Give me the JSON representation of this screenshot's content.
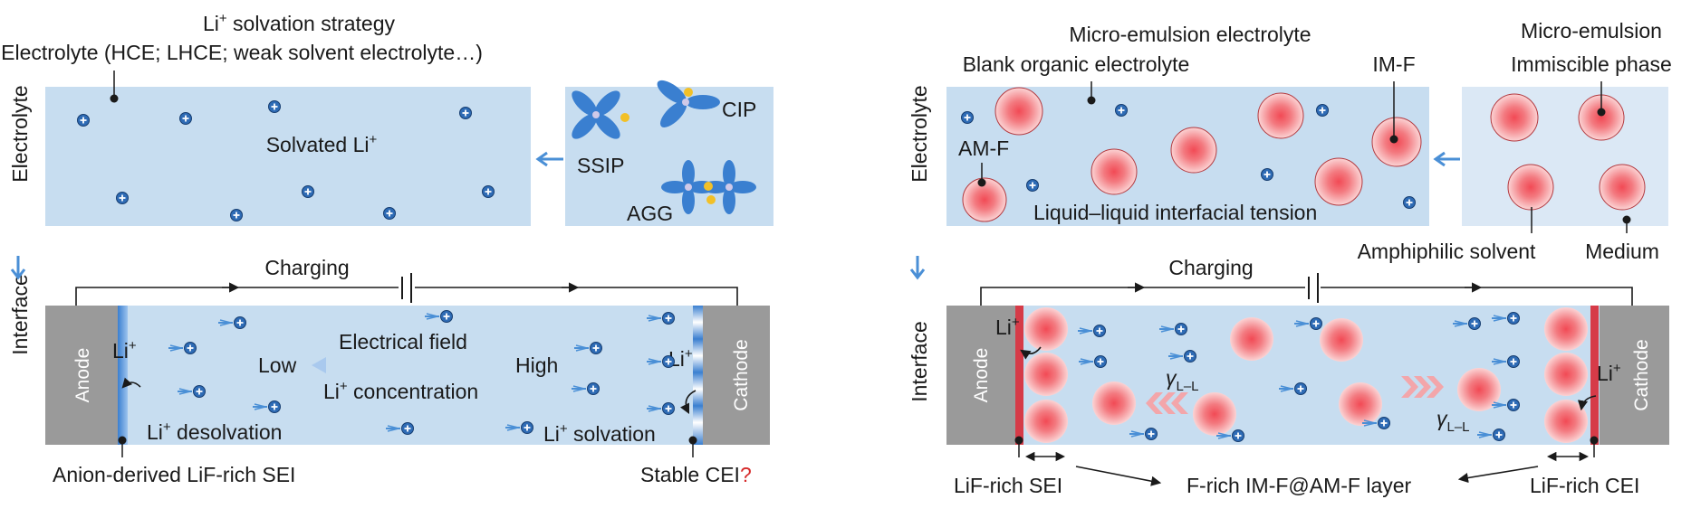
{
  "left": {
    "title_main": "Li",
    "title_sup": "+",
    "title_rest": " solvation strategy",
    "electrolyte_label": "Electrolyte (HCE; LHCE; weak solvent electrolyte…)",
    "side_top": "Electrolyte",
    "side_bottom": "Interface",
    "solvated_main": "Solvated Li",
    "solvated_sup": "+",
    "ssip": "SSIP",
    "cip": "CIP",
    "agg": "AGG",
    "charging": "Charging",
    "anode": "Anode",
    "cathode": "Cathode",
    "li_main": "Li",
    "li_sup": "+",
    "electrical_field": "Electrical field",
    "low": "Low",
    "high": "High",
    "conc_main": "Li",
    "conc_sup": "+",
    "conc_rest": " concentration",
    "desolv_main": "Li",
    "desolv_sup": "+",
    "desolv_rest": " desolvation",
    "solv_main": "Li",
    "solv_sup": "+",
    "solv_rest": " solvation",
    "sei_label": "Anion-derived LiF-rich SEI",
    "cei_label": "Stable CEI",
    "cei_q": "?"
  },
  "right": {
    "me_electrolyte": "Micro-emulsion electrolyte",
    "blank_label": "Blank organic electrolyte",
    "imf": "IM-F",
    "me_title": "Micro-emulsion",
    "immiscible": "Immiscible phase",
    "amf": "AM-F",
    "side_top": "Electrolyte",
    "side_bottom": "Interface",
    "tension": "Liquid–liquid interfacial tension",
    "amphiphilic": "Amphiphilic solvent",
    "medium": "Medium",
    "charging": "Charging",
    "anode": "Anode",
    "cathode": "Cathode",
    "li_main": "Li",
    "li_sup": "+",
    "gamma": "γ",
    "gamma_sub": "L–L",
    "sei_label": "LiF-rich SEI",
    "layer_label": "F-rich IM-F@AM-F layer",
    "cei_label": "LiF-rich CEI"
  },
  "colors": {
    "panel_blue": "#c7ddf0",
    "panel_light": "#dbe8f5",
    "arrow_blue": "#4a8fd6",
    "grey_electrode": "#9a9a9a",
    "sei_red": "#d63b48",
    "droplet_red": "#f0606a",
    "question_red": "#d62a2a"
  }
}
